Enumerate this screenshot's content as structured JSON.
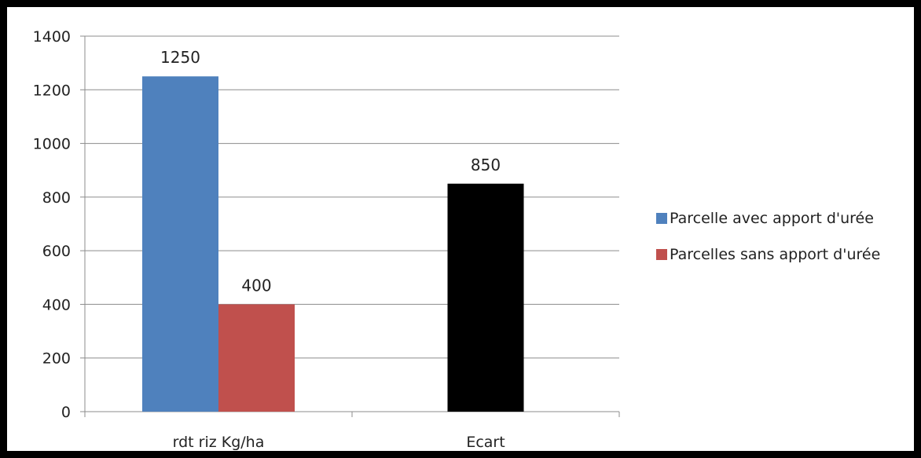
{
  "chart_data": {
    "type": "bar",
    "title": "",
    "xlabel": "",
    "ylabel": "",
    "ylim": [
      0,
      1400
    ],
    "yticks": [
      0,
      200,
      400,
      600,
      800,
      1000,
      1200,
      1400
    ],
    "grid": true,
    "legend_position": "right",
    "categories": [
      "rdt riz Kg/ha",
      "Ecart"
    ],
    "groups": [
      {
        "category": "rdt riz Kg/ha",
        "bars": [
          {
            "series": "Parcelle avec apport d'urée",
            "value": 1250,
            "label": "1250",
            "color": "#4f81bd"
          },
          {
            "series": "Parcelles sans apport d'urée",
            "value": 400,
            "label": "400",
            "color": "#c0504d"
          }
        ]
      },
      {
        "category": "Ecart",
        "bars": [
          {
            "series": "",
            "value": 850,
            "label": "850",
            "color": "#000000"
          }
        ]
      }
    ],
    "legend": [
      {
        "name": "Parcelle avec apport d'urée",
        "color": "#4f81bd"
      },
      {
        "name": "Parcelles sans apport d'urée",
        "color": "#c0504d"
      }
    ]
  }
}
